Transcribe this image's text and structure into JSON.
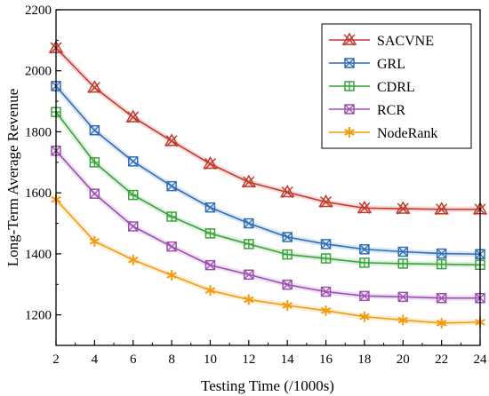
{
  "chart_data": {
    "type": "line",
    "title": "",
    "xlabel": "Testing Time (/1000s)",
    "ylabel": "Long-Term Average Revenue",
    "x": [
      2,
      4,
      6,
      8,
      10,
      12,
      14,
      16,
      18,
      20,
      22,
      24
    ],
    "xlim": [
      2,
      24
    ],
    "ylim": [
      1100,
      2200
    ],
    "xticks": [
      2,
      4,
      6,
      8,
      10,
      12,
      14,
      16,
      18,
      20,
      22,
      24
    ],
    "yticks": [
      1200,
      1400,
      1600,
      1800,
      2000,
      2200
    ],
    "grid": false,
    "legend_position": "top-right",
    "series": [
      {
        "name": "SACVNE",
        "color": "#c0392b",
        "marker": "triangle-x",
        "values": [
          2075,
          1945,
          1848,
          1770,
          1695,
          1635,
          1602,
          1570,
          1550,
          1548,
          1546,
          1546
        ]
      },
      {
        "name": "GRL",
        "color": "#2f6db5",
        "marker": "square-x",
        "values": [
          1950,
          1805,
          1703,
          1622,
          1552,
          1500,
          1455,
          1432,
          1415,
          1407,
          1401,
          1399
        ]
      },
      {
        "name": "CDRL",
        "color": "#3aa23a",
        "marker": "square-plus",
        "values": [
          1865,
          1700,
          1593,
          1522,
          1467,
          1432,
          1398,
          1385,
          1371,
          1368,
          1366,
          1364
        ]
      },
      {
        "name": "RCR",
        "color": "#9b4fb0",
        "marker": "square-x",
        "values": [
          1738,
          1597,
          1490,
          1424,
          1363,
          1332,
          1299,
          1276,
          1262,
          1259,
          1255,
          1255
        ]
      },
      {
        "name": "NodeRank",
        "color": "#f39c12",
        "marker": "asterisk",
        "values": [
          1578,
          1441,
          1380,
          1330,
          1280,
          1250,
          1231,
          1214,
          1194,
          1183,
          1173,
          1176
        ]
      }
    ]
  }
}
